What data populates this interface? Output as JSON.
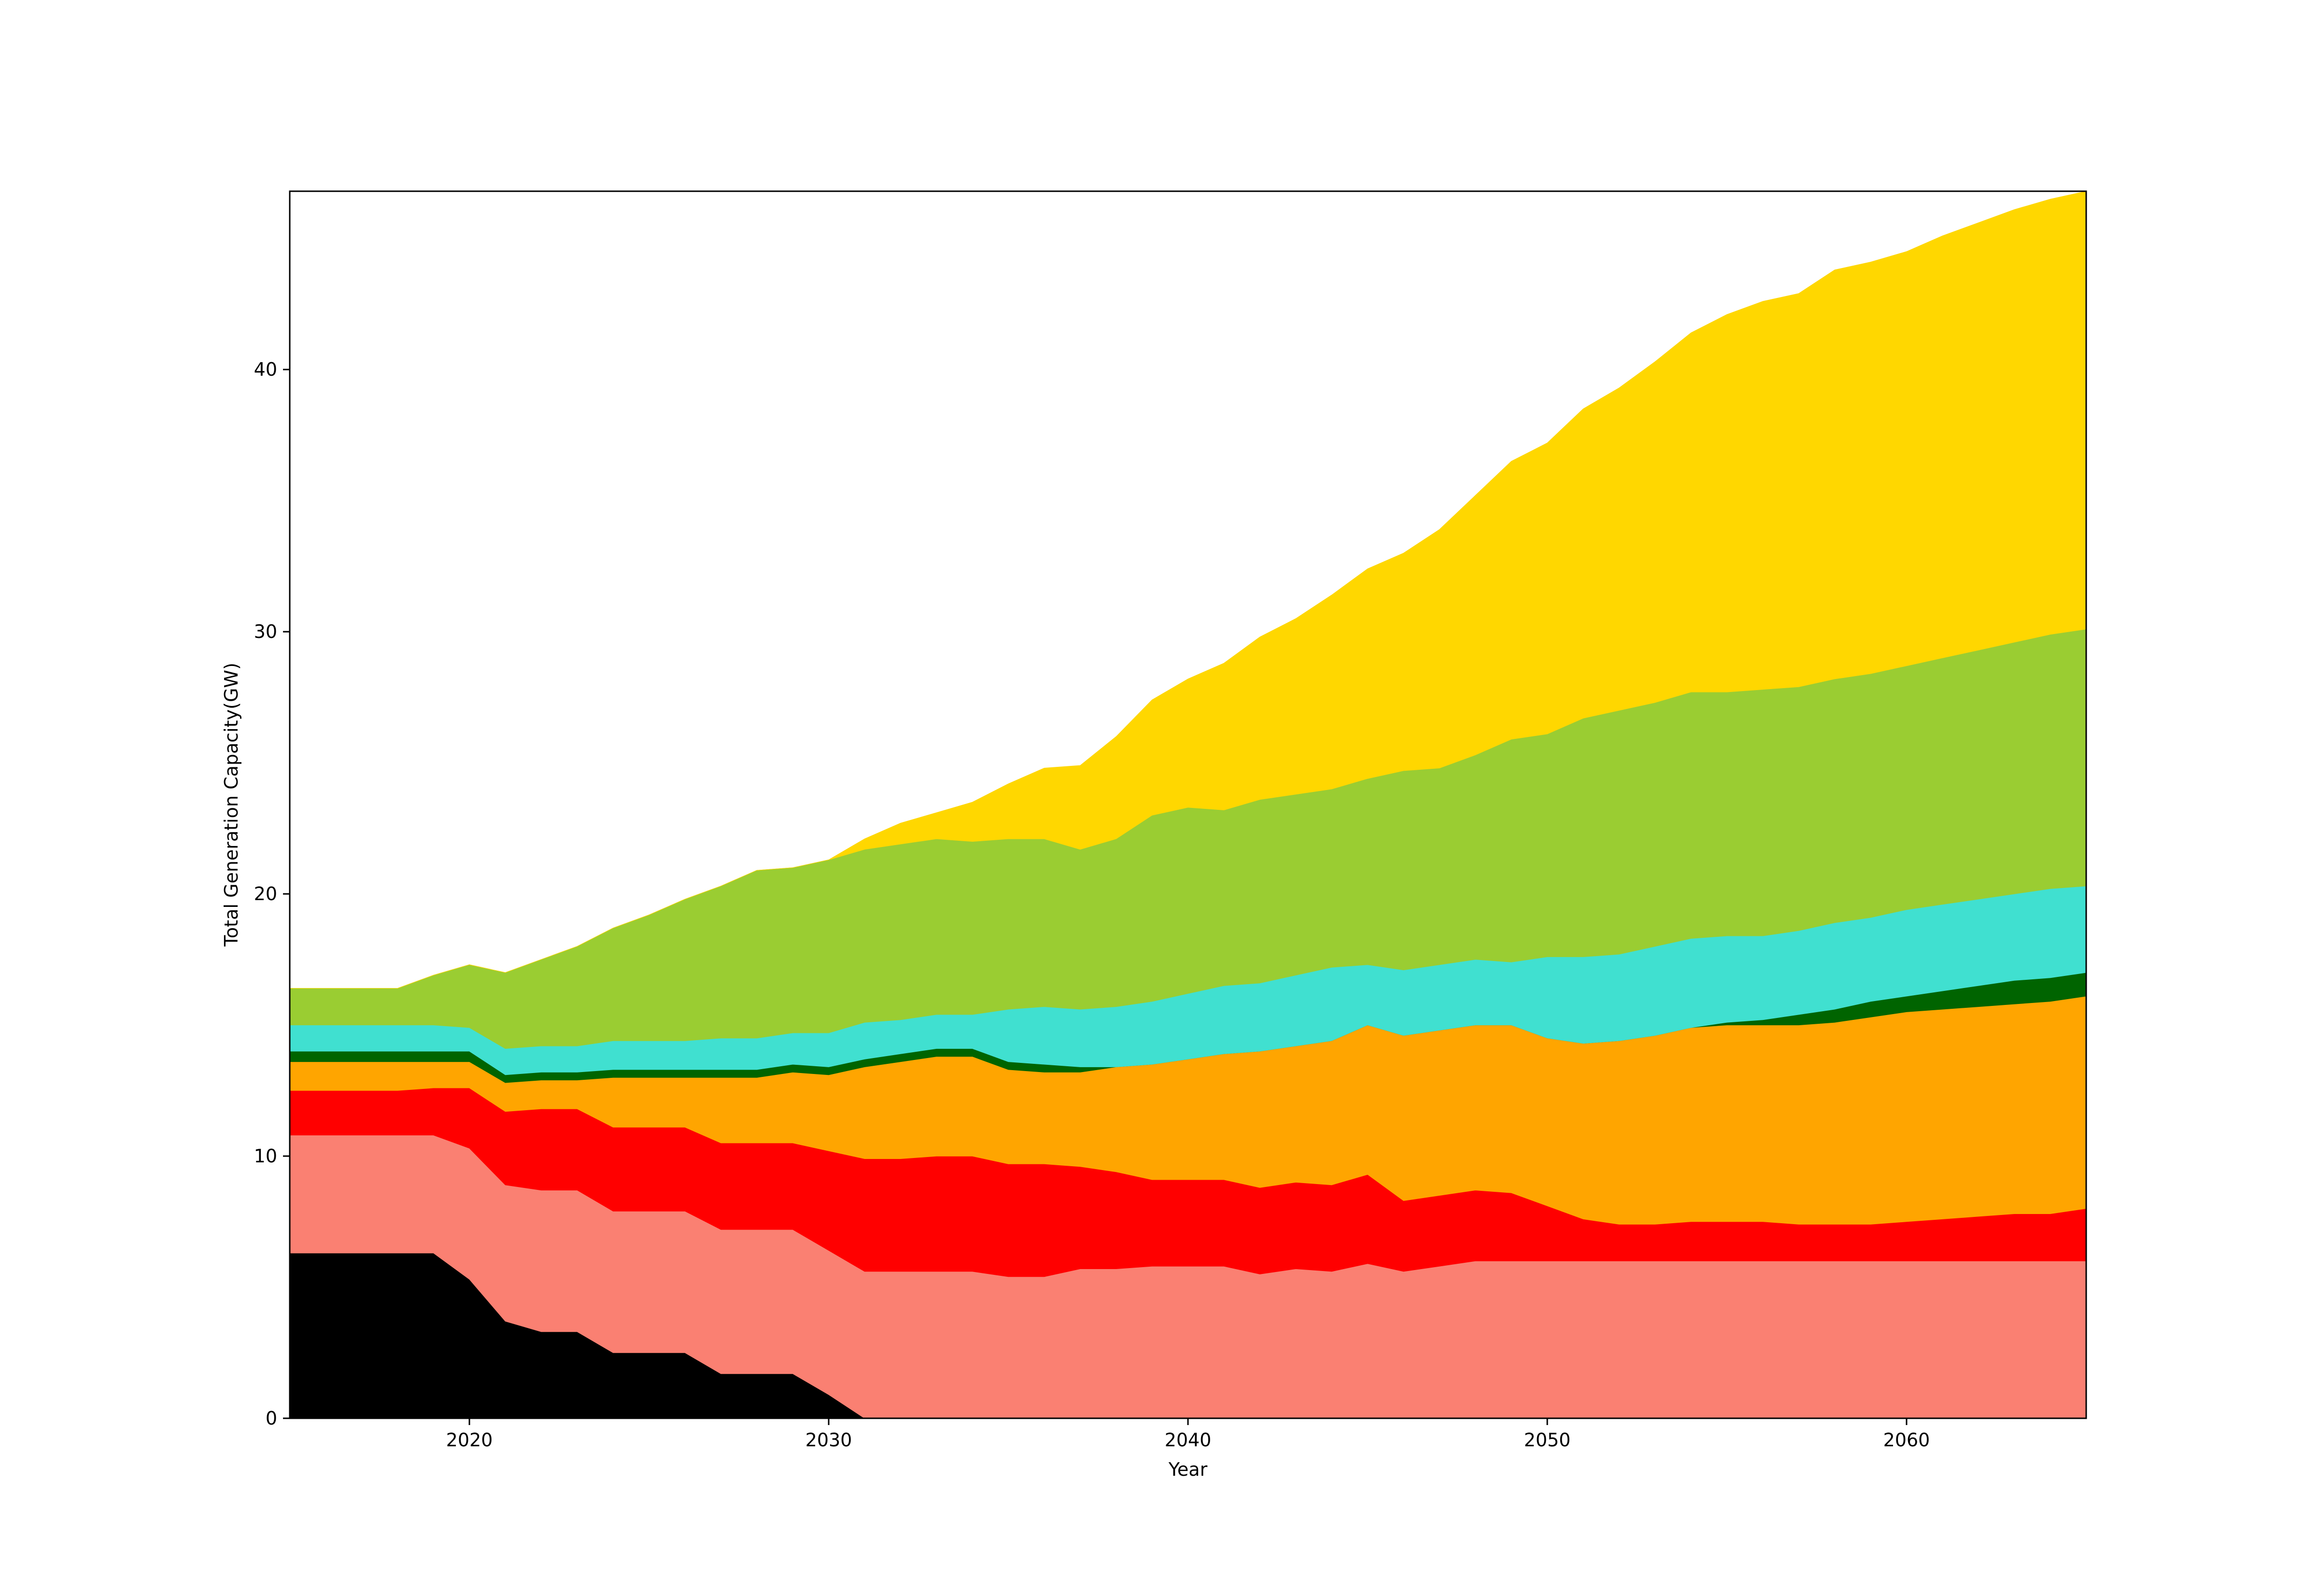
{
  "chart_data": {
    "type": "area",
    "stacked": true,
    "title": "",
    "xlabel": "Year",
    "ylabel": "Total Generation Capacity(GW)",
    "xlim": [
      2015,
      2065
    ],
    "ylim": [
      0,
      46.8
    ],
    "xticks": [
      2020,
      2030,
      2040,
      2050,
      2060
    ],
    "yticks": [
      0,
      10,
      20,
      30,
      40
    ],
    "grid": false,
    "legend": "none",
    "x": [
      2015,
      2016,
      2017,
      2018,
      2019,
      2020,
      2021,
      2022,
      2023,
      2024,
      2025,
      2026,
      2027,
      2028,
      2029,
      2030,
      2031,
      2032,
      2033,
      2034,
      2035,
      2036,
      2037,
      2038,
      2039,
      2040,
      2041,
      2042,
      2043,
      2044,
      2045,
      2046,
      2047,
      2048,
      2049,
      2050,
      2051,
      2052,
      2053,
      2054,
      2055,
      2056,
      2057,
      2058,
      2059,
      2060,
      2061,
      2062,
      2063,
      2064,
      2065
    ],
    "series": [
      {
        "color": "#000000",
        "values": [
          6.3,
          6.3,
          6.3,
          6.3,
          6.3,
          5.3,
          3.7,
          3.3,
          3.3,
          2.5,
          2.5,
          2.5,
          1.7,
          1.7,
          1.7,
          0.9,
          0,
          0,
          0,
          0,
          0,
          0,
          0,
          0,
          0,
          0,
          0,
          0,
          0,
          0,
          0,
          0,
          0,
          0,
          0,
          0,
          0,
          0,
          0,
          0,
          0,
          0,
          0,
          0,
          0,
          0,
          0,
          0,
          0,
          0,
          0
        ]
      },
      {
        "color": "#fa8072",
        "values": [
          4.5,
          4.5,
          4.5,
          4.5,
          4.5,
          5.0,
          5.2,
          5.4,
          5.4,
          5.4,
          5.4,
          5.4,
          5.5,
          5.5,
          5.5,
          5.5,
          5.6,
          5.6,
          5.6,
          5.6,
          5.4,
          5.4,
          5.7,
          5.7,
          5.8,
          5.8,
          5.8,
          5.5,
          5.7,
          5.6,
          5.9,
          5.6,
          5.8,
          6.0,
          6.0,
          6.0,
          6.0,
          6.0,
          6.0,
          6.0,
          6.0,
          6.0,
          6.0,
          6.0,
          6.0,
          6.0,
          6.0,
          6.0,
          6.0,
          6.0,
          6.0
        ]
      },
      {
        "color": "#ff0000",
        "values": [
          1.7,
          1.7,
          1.7,
          1.7,
          1.8,
          2.3,
          2.8,
          3.1,
          3.1,
          3.2,
          3.2,
          3.2,
          3.3,
          3.3,
          3.3,
          3.8,
          4.3,
          4.3,
          4.4,
          4.4,
          4.3,
          4.3,
          3.9,
          3.7,
          3.3,
          3.3,
          3.3,
          3.3,
          3.3,
          3.3,
          3.4,
          2.7,
          2.7,
          2.7,
          2.6,
          2.1,
          1.6,
          1.4,
          1.4,
          1.5,
          1.5,
          1.5,
          1.4,
          1.4,
          1.4,
          1.5,
          1.6,
          1.7,
          1.8,
          1.8,
          2.0
        ]
      },
      {
        "color": "#ffa500",
        "values": [
          1.1,
          1.1,
          1.1,
          1.1,
          1.0,
          1.0,
          1.1,
          1.1,
          1.1,
          1.9,
          1.9,
          1.9,
          2.5,
          2.5,
          2.7,
          2.9,
          3.5,
          3.7,
          3.8,
          3.8,
          3.6,
          3.5,
          3.6,
          4.0,
          4.4,
          4.6,
          4.8,
          5.2,
          5.2,
          5.5,
          5.7,
          6.3,
          6.3,
          6.3,
          6.4,
          6.4,
          6.7,
          7.0,
          7.2,
          7.4,
          7.5,
          7.5,
          7.6,
          7.7,
          7.9,
          8.0,
          8.0,
          8.0,
          8.0,
          8.1,
          8.1
        ]
      },
      {
        "color": "#006400",
        "values": [
          0.4,
          0.4,
          0.4,
          0.4,
          0.4,
          0.4,
          0.3,
          0.3,
          0.3,
          0.3,
          0.3,
          0.3,
          0.3,
          0.3,
          0.3,
          0.3,
          0.3,
          0.3,
          0.3,
          0.3,
          0.3,
          0.3,
          0.2,
          0,
          0,
          0,
          0,
          0,
          0,
          0,
          0,
          0,
          0,
          0,
          0,
          0,
          0,
          0,
          0,
          0,
          0.1,
          0.2,
          0.4,
          0.5,
          0.6,
          0.6,
          0.7,
          0.8,
          0.9,
          0.9,
          0.9
        ]
      },
      {
        "color": "#40e0d0",
        "values": [
          1.0,
          1.0,
          1.0,
          1.0,
          1.0,
          0.9,
          1.0,
          1.0,
          1.0,
          1.1,
          1.1,
          1.1,
          1.2,
          1.2,
          1.2,
          1.3,
          1.4,
          1.3,
          1.3,
          1.3,
          2.0,
          2.2,
          2.2,
          2.3,
          2.4,
          2.5,
          2.6,
          2.6,
          2.7,
          2.8,
          2.3,
          2.5,
          2.5,
          2.5,
          2.4,
          3.1,
          3.3,
          3.3,
          3.4,
          3.4,
          3.3,
          3.2,
          3.2,
          3.3,
          3.2,
          3.3,
          3.3,
          3.3,
          3.3,
          3.4,
          3.3
        ]
      },
      {
        "color": "#9acd32",
        "values": [
          1.4,
          1.4,
          1.4,
          1.4,
          1.9,
          2.4,
          2.9,
          3.3,
          3.8,
          4.3,
          4.8,
          5.4,
          5.8,
          6.4,
          6.3,
          6.6,
          6.6,
          6.7,
          6.7,
          6.6,
          6.5,
          6.4,
          6.1,
          6.4,
          7.1,
          7.1,
          6.7,
          7.0,
          6.9,
          6.8,
          7.1,
          7.6,
          7.5,
          7.8,
          8.5,
          8.5,
          9.1,
          9.3,
          9.3,
          9.4,
          9.3,
          9.4,
          9.3,
          9.3,
          9.3,
          9.3,
          9.4,
          9.5,
          9.6,
          9.7,
          9.8
        ]
      },
      {
        "color": "#ffd700",
        "values": [
          0,
          0,
          0,
          0,
          0,
          0,
          0,
          0,
          0,
          0,
          0,
          0,
          0,
          0,
          0,
          0,
          0.4,
          0.8,
          1.0,
          1.5,
          2.1,
          2.7,
          3.2,
          3.9,
          4.4,
          4.9,
          5.6,
          6.2,
          6.7,
          7.4,
          8.0,
          8.3,
          9.1,
          9.9,
          10.6,
          11.1,
          11.8,
          12.3,
          13.0,
          13.7,
          14.4,
          14.8,
          15.0,
          15.6,
          15.7,
          15.8,
          16.1,
          16.3,
          16.5,
          16.6,
          16.7
        ]
      }
    ]
  }
}
